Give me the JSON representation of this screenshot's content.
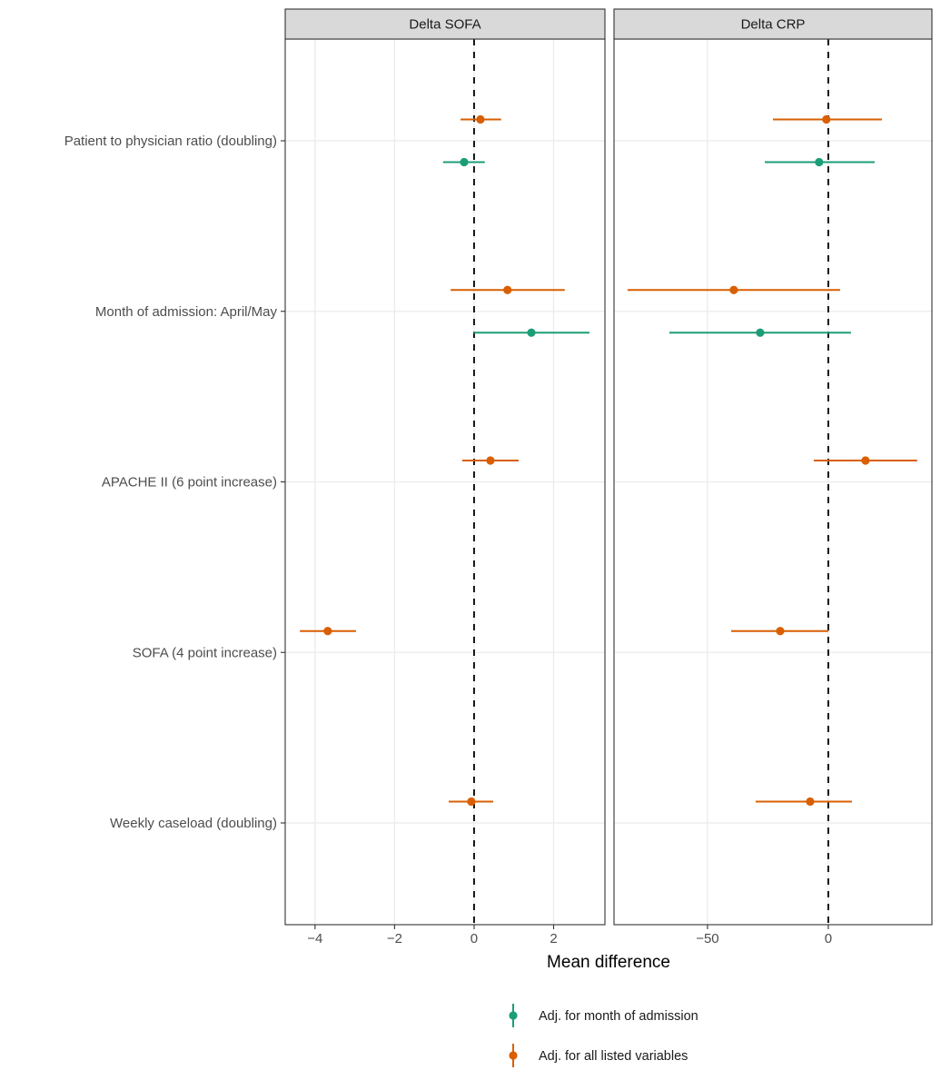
{
  "chart_data": {
    "type": "forest",
    "xlabel": "Mean difference",
    "ylabel": "",
    "grid": true,
    "legend_position": "bottom",
    "categories": [
      "Patient to physician ratio (doubling)",
      "Month of admission: April/May",
      "APACHE II (6 point increase)",
      "SOFA (4 point increase)",
      "Weekly caseload (doubling)"
    ],
    "legend": [
      {
        "key": "month",
        "name": "Adj. for month of admission",
        "color": "#1B9E77"
      },
      {
        "key": "all",
        "name": "Adj. for all listed variables",
        "color": "#D95F02"
      }
    ],
    "reference_line": 0,
    "panels": [
      {
        "title": "Delta SOFA",
        "xlim": [
          -4.75,
          3.29
        ],
        "xticks": [
          -4,
          -2,
          0,
          2
        ],
        "xtick_labels": [
          "−4",
          "−2",
          "0",
          "2"
        ],
        "estimates": [
          {
            "category": 0,
            "series": "all",
            "estimate": 0.16,
            "lower": -0.34,
            "upper": 0.68
          },
          {
            "category": 0,
            "series": "month",
            "estimate": -0.25,
            "lower": -0.78,
            "upper": 0.27
          },
          {
            "category": 1,
            "series": "all",
            "estimate": 0.84,
            "lower": -0.59,
            "upper": 2.28
          },
          {
            "category": 1,
            "series": "month",
            "estimate": 1.44,
            "lower": -0.02,
            "upper": 2.9
          },
          {
            "category": 2,
            "series": "all",
            "estimate": 0.41,
            "lower": -0.3,
            "upper": 1.12
          },
          {
            "category": 3,
            "series": "all",
            "estimate": -3.68,
            "lower": -4.38,
            "upper": -2.97
          },
          {
            "category": 4,
            "series": "all",
            "estimate": -0.07,
            "lower": -0.64,
            "upper": 0.48
          }
        ]
      },
      {
        "title": "Delta CRP",
        "xlim": [
          -88.7,
          42.9
        ],
        "xticks": [
          -50,
          0
        ],
        "xtick_labels": [
          "−50",
          "0"
        ],
        "estimates": [
          {
            "category": 0,
            "series": "all",
            "estimate": -0.8,
            "lower": -22.9,
            "upper": 22.2
          },
          {
            "category": 0,
            "series": "month",
            "estimate": -3.8,
            "lower": -26.3,
            "upper": 19.2
          },
          {
            "category": 1,
            "series": "all",
            "estimate": -39.1,
            "lower": -83.1,
            "upper": 4.9
          },
          {
            "category": 1,
            "series": "month",
            "estimate": -28.2,
            "lower": -65.8,
            "upper": 9.4
          },
          {
            "category": 2,
            "series": "all",
            "estimate": 15.4,
            "lower": -6.0,
            "upper": 36.8
          },
          {
            "category": 3,
            "series": "all",
            "estimate": -19.9,
            "lower": -40.2,
            "upper": 0.0
          },
          {
            "category": 4,
            "series": "all",
            "estimate": -7.5,
            "lower": -30.1,
            "upper": 9.8
          }
        ]
      }
    ]
  }
}
